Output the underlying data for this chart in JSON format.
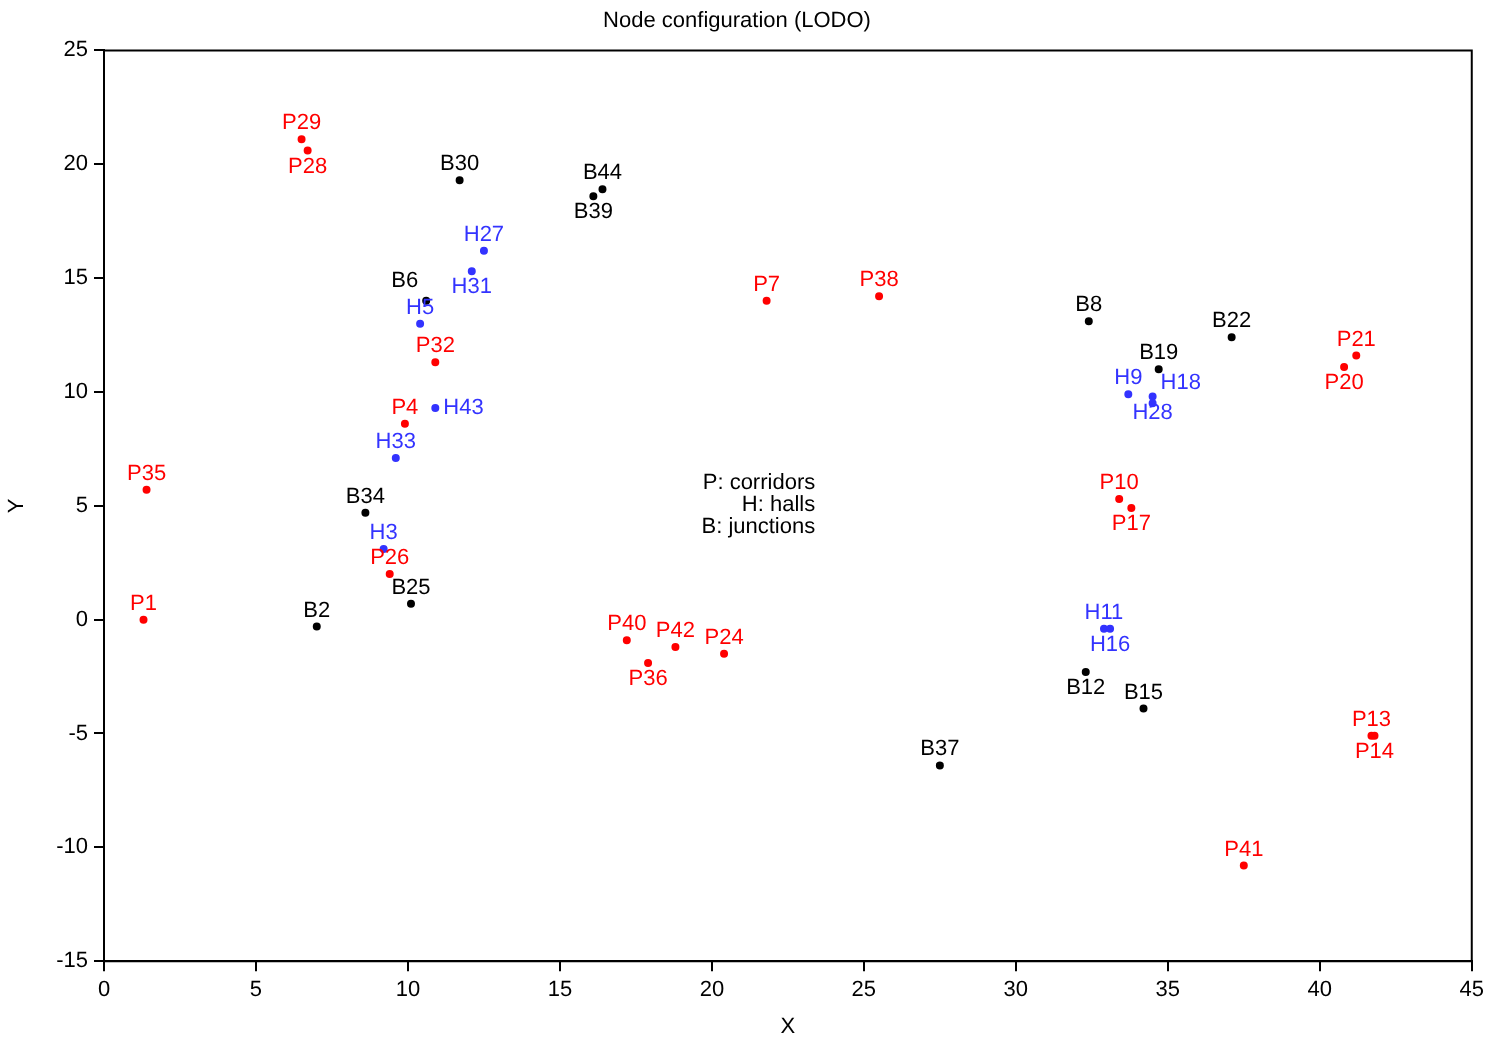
{
  "chart_data": {
    "type": "scatter",
    "title": "Node configuration (LODO)",
    "xlabel": "X",
    "ylabel": "Y",
    "xlim": [
      0,
      45
    ],
    "xticks": [
      0,
      5,
      10,
      15,
      20,
      25,
      30,
      35,
      40,
      45
    ],
    "ylim": [
      -15,
      25
    ],
    "yticks": [
      -15,
      -10,
      -5,
      0,
      5,
      10,
      15,
      20,
      25
    ],
    "grid": false,
    "legend": false,
    "marker": "circle",
    "annotations": [
      "P: corridors",
      "H: halls",
      "B: junctions"
    ],
    "series": [
      {
        "color": "#ff0000",
        "x": [
          6.5,
          6.7,
          10.9,
          9.9,
          1.4,
          9.4,
          1.3,
          21.8,
          25.5,
          17.2,
          18.8,
          17.9,
          20.4,
          41.2,
          40.8,
          33.4,
          33.8,
          41.7,
          41.8,
          37.5
        ],
        "values": [
          21.1,
          20.6,
          11.3,
          8.6,
          5.7,
          2.0,
          0.0,
          14.0,
          14.2,
          -0.9,
          -1.2,
          -1.9,
          -1.5,
          11.6,
          11.1,
          5.3,
          4.9,
          -5.1,
          -5.1,
          -10.8
        ],
        "value_labels": [
          "P29",
          "P28",
          "P32",
          "P4",
          "P35",
          "P26",
          "P1",
          "P7",
          "P38",
          "P40",
          "P42",
          "P36",
          "P24",
          "P21",
          "P20",
          "P10",
          "P17",
          "P13",
          "P14",
          "P41"
        ]
      },
      {
        "color": "#3333ff",
        "x": [
          12.5,
          12.1,
          10.4,
          10.9,
          9.6,
          9.2,
          33.7,
          34.5,
          34.5,
          32.9,
          33.1
        ],
        "values": [
          16.2,
          15.3,
          13.0,
          9.3,
          7.1,
          3.1,
          9.9,
          9.8,
          9.5,
          -0.4,
          -0.4
        ],
        "value_labels": [
          "H27",
          "H31",
          "H5",
          "H43",
          "H33",
          "H3",
          "H9",
          "H28",
          "H18",
          "H11",
          "H16"
        ]
      },
      {
        "color": "#000000",
        "x": [
          11.7,
          16.4,
          16.1,
          10.6,
          8.6,
          10.1,
          7.0,
          27.5,
          32.4,
          37.1,
          34.7,
          32.3,
          34.2
        ],
        "values": [
          19.3,
          18.9,
          18.6,
          14.0,
          4.7,
          0.7,
          -0.3,
          -6.4,
          13.1,
          12.4,
          11.0,
          -2.3,
          -3.9
        ],
        "value_labels": [
          "B30",
          "B44",
          "B39",
          "B6",
          "B34",
          "B25",
          "B2",
          "B37",
          "B8",
          "B22",
          "B19",
          "B12",
          "B15"
        ]
      }
    ]
  }
}
